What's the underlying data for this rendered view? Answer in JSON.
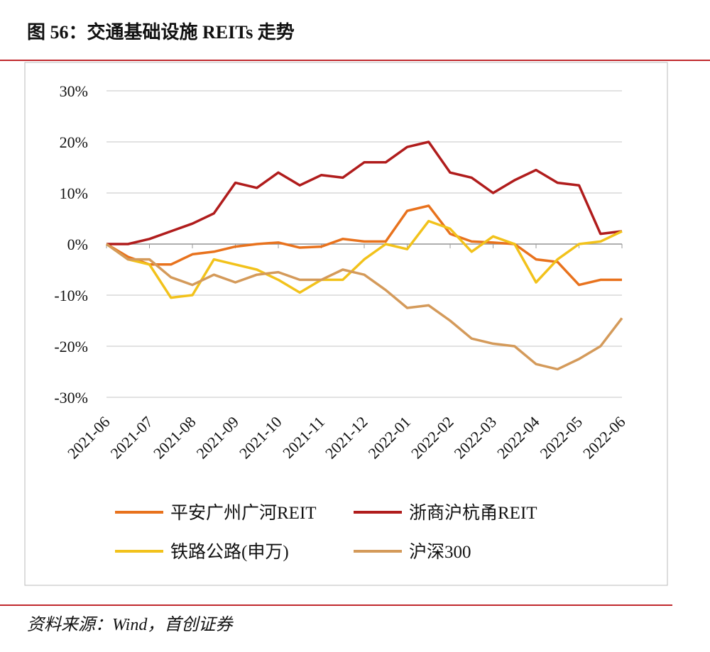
{
  "title": "图 56：交通基础设施 REITs 走势",
  "source": "资料来源：Wind，首创证券",
  "chart_data": {
    "type": "line",
    "x": [
      0,
      0.5,
      1,
      1.5,
      2,
      2.5,
      3,
      3.5,
      4,
      4.5,
      5,
      5.5,
      6,
      6.5,
      7,
      7.5,
      8,
      8.5,
      9,
      9.5,
      10,
      10.5,
      11,
      11.5,
      12
    ],
    "xlim": [
      0,
      12
    ],
    "xticks": [
      {
        "value": 0,
        "label": "2021-06"
      },
      {
        "value": 1,
        "label": "2021-07"
      },
      {
        "value": 2,
        "label": "2021-08"
      },
      {
        "value": 3,
        "label": "2021-09"
      },
      {
        "value": 4,
        "label": "2021-10"
      },
      {
        "value": 5,
        "label": "2021-11"
      },
      {
        "value": 6,
        "label": "2021-12"
      },
      {
        "value": 7,
        "label": "2022-01"
      },
      {
        "value": 8,
        "label": "2022-02"
      },
      {
        "value": 9,
        "label": "2022-03"
      },
      {
        "value": 10,
        "label": "2022-04"
      },
      {
        "value": 11,
        "label": "2022-05"
      },
      {
        "value": 12,
        "label": "2022-06"
      }
    ],
    "ylim": [
      -30,
      30
    ],
    "yticks": [
      {
        "value": 30,
        "label": "30%"
      },
      {
        "value": 20,
        "label": "20%"
      },
      {
        "value": 10,
        "label": "10%"
      },
      {
        "value": 0,
        "label": "0%"
      },
      {
        "value": -10,
        "label": "-10%"
      },
      {
        "value": -20,
        "label": "-20%"
      },
      {
        "value": -30,
        "label": "-30%"
      }
    ],
    "grid": true,
    "series": [
      {
        "name": "平安广州广河REIT",
        "color": "#e8721d",
        "values": [
          0,
          -2.5,
          -4,
          -4,
          -2,
          -1.5,
          -0.5,
          0,
          0.3,
          -0.7,
          -0.5,
          1,
          0.5,
          0.5,
          6.5,
          7.5,
          2,
          0.5,
          0.3,
          0,
          -3,
          -3.5,
          -8,
          -7,
          -7
        ]
      },
      {
        "name": "浙商沪杭甬REIT",
        "color": "#b01c1c",
        "values": [
          0,
          0,
          1,
          2.5,
          4,
          6,
          12,
          11,
          14,
          11.5,
          13.5,
          13,
          16,
          16,
          19,
          20,
          14,
          13,
          10,
          12.5,
          14.5,
          12,
          11.5,
          2,
          2.5
        ]
      },
      {
        "name": "铁路公路(申万)",
        "color": "#f2c21b",
        "values": [
          0,
          -3,
          -4,
          -10.5,
          -10,
          -3,
          -4,
          -5,
          -7,
          -9.5,
          -7,
          -7,
          -3,
          0,
          -1,
          4.5,
          3,
          -1.5,
          1.5,
          0,
          -7.5,
          -3,
          0,
          0.5,
          2.5
        ]
      },
      {
        "name": "沪深300",
        "color": "#d49a5a",
        "values": [
          0,
          -3,
          -3,
          -6.5,
          -8,
          -6,
          -7.5,
          -6,
          -5.5,
          -7,
          -7,
          -5,
          -6,
          -9,
          -12.5,
          -12,
          -15,
          -18.5,
          -19.5,
          -20,
          -23.5,
          -24.5,
          -22.5,
          -20,
          -14.5
        ]
      }
    ]
  }
}
